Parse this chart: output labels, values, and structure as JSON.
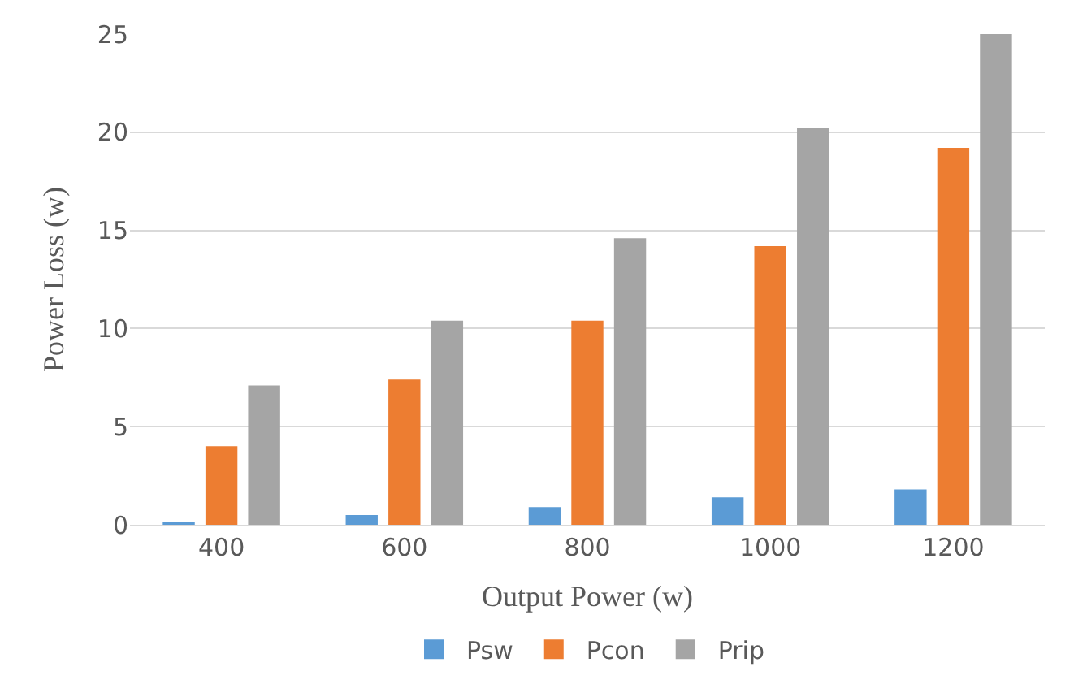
{
  "chart_data": {
    "type": "bar",
    "xlabel": "Output Power (w)",
    "ylabel": "Power Loss (w)",
    "categories": [
      "400",
      "600",
      "800",
      "1000",
      "1200"
    ],
    "series": [
      {
        "name": "Psw",
        "color": "#5b9bd5",
        "values": [
          0.1,
          0.5,
          0.9,
          1.4,
          1.8
        ]
      },
      {
        "name": "Pcon",
        "color": "#ed7d31",
        "values": [
          4.0,
          7.4,
          10.4,
          14.2,
          19.2
        ]
      },
      {
        "name": "Prip",
        "color": "#a5a5a5",
        "values": [
          7.1,
          10.4,
          14.6,
          20.2,
          25.0
        ]
      }
    ],
    "ylim": [
      0,
      25
    ],
    "yticks": [
      0,
      5,
      10,
      15,
      20,
      25
    ],
    "grid": "y",
    "legend": "bottom"
  }
}
